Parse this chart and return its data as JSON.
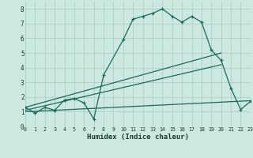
{
  "xlabel": "Humidex (Indice chaleur)",
  "bg_color": "#cce8e0",
  "grid_color": "#aacfc8",
  "line_color": "#1a6a5a",
  "xlim": [
    0,
    23
  ],
  "ylim": [
    0,
    8.5
  ],
  "xticks": [
    0,
    1,
    2,
    3,
    4,
    5,
    6,
    7,
    8,
    9,
    10,
    11,
    12,
    13,
    14,
    15,
    16,
    17,
    18,
    19,
    20,
    21,
    22,
    23
  ],
  "yticks": [
    0,
    1,
    2,
    3,
    4,
    5,
    6,
    7,
    8
  ],
  "curve1_x": [
    0,
    1,
    2,
    3,
    4,
    5,
    6,
    7,
    8,
    10,
    11,
    12,
    13,
    14,
    15,
    16,
    17,
    18,
    19,
    20,
    21,
    22,
    23
  ],
  "curve1_y": [
    1.3,
    0.9,
    1.3,
    1.1,
    1.8,
    1.9,
    1.6,
    0.5,
    3.5,
    5.9,
    7.3,
    7.5,
    7.7,
    8.0,
    7.5,
    7.1,
    7.5,
    7.1,
    5.2,
    4.5,
    2.6,
    1.15,
    1.7
  ],
  "line2_x": [
    0,
    20
  ],
  "line2_y": [
    1.3,
    5.0
  ],
  "line3_x": [
    0,
    20
  ],
  "line3_y": [
    1.1,
    4.2
  ],
  "line4_x": [
    0,
    23
  ],
  "line4_y": [
    1.0,
    1.75
  ]
}
